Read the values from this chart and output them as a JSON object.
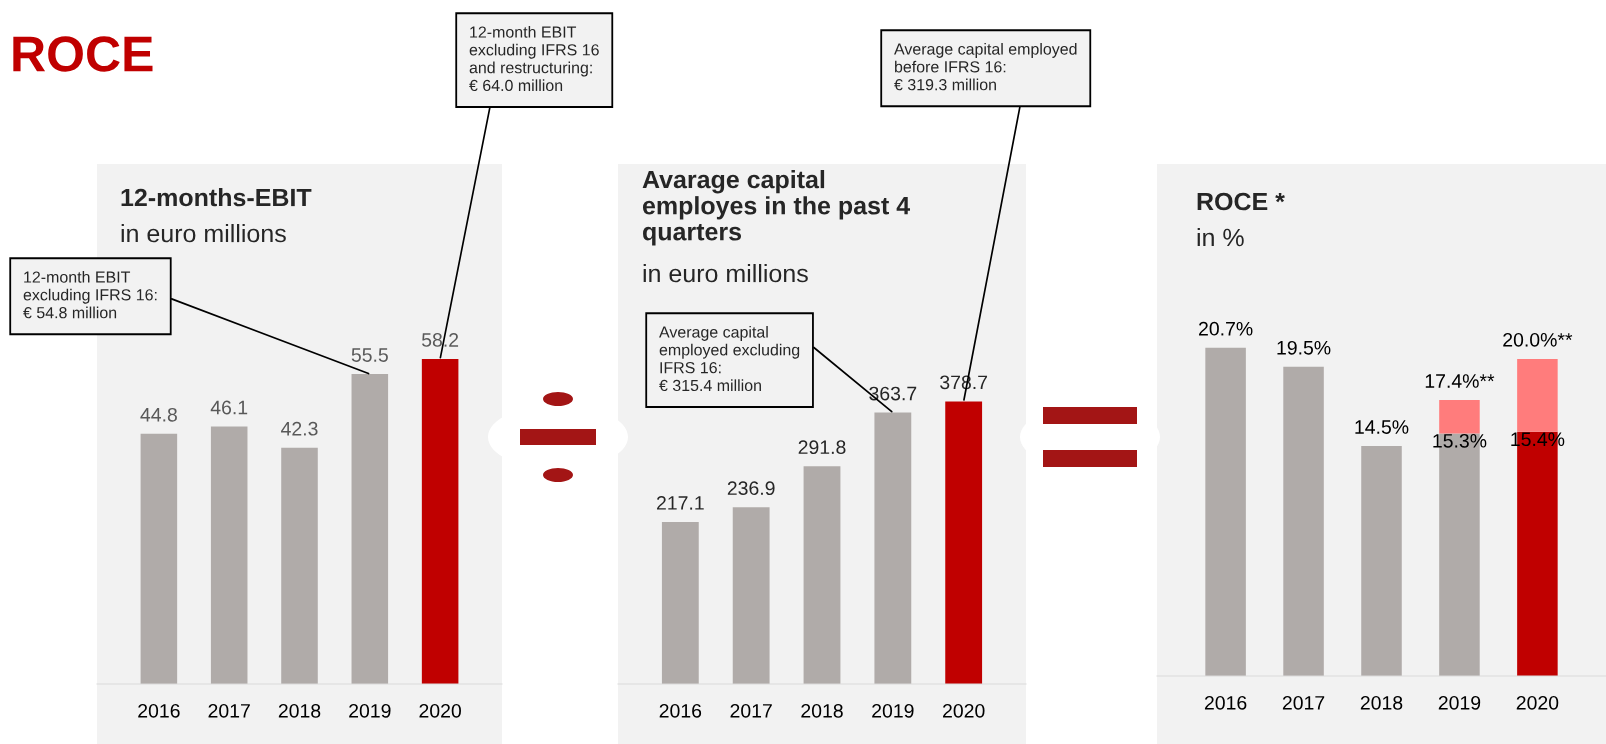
{
  "chart_data": [
    {
      "type": "other",
      "title": "ROCE"
    },
    {
      "type": "bar",
      "title": "12-months-EBIT",
      "subtitle": "in euro millions",
      "categories": [
        "2016",
        "2017",
        "2018",
        "2019",
        "2020"
      ],
      "values": [
        44.8,
        46.1,
        42.3,
        55.5,
        58.2
      ],
      "colors": [
        "#b0aba9",
        "#b0aba9",
        "#b0aba9",
        "#b0aba9",
        "#c00000"
      ],
      "data_labels": true,
      "tick_labels": "x",
      "annotations": [
        {
          "text": "12-month EBIT\nexcluding IFRS 16:\n€ 54.8 million",
          "x": "2019",
          "y": 55.5
        },
        {
          "text": "12-month EBIT\nexcluding IFRS 16\nand restructuring:\n€ 64.0 million",
          "x": "2020",
          "y": 58.2
        }
      ]
    },
    {
      "type": "bar",
      "title": "Avarage capital\nemployes in the past 4\nquarters",
      "subtitle": "in euro millions",
      "categories": [
        "2016",
        "2017",
        "2018",
        "2019",
        "2020"
      ],
      "values": [
        217.1,
        236.9,
        291.8,
        363.7,
        378.7
      ],
      "colors": [
        "#b0aba9",
        "#b0aba9",
        "#b0aba9",
        "#b0aba9",
        "#c00000"
      ],
      "data_labels": true,
      "tick_labels": "x",
      "annotations": [
        {
          "text": "Average capital\nemployed excluding\nIFRS 16:\n€ 315.4 million",
          "x": "2019",
          "y": 363.7
        },
        {
          "text": "Average capital employed\nbefore IFRS 16:\n€ 319.3 million",
          "x": "2020",
          "y": 378.7
        }
      ]
    },
    {
      "type": "bar",
      "title": "ROCE *",
      "subtitle": "in %",
      "categories": [
        "2016",
        "2017",
        "2018",
        "2019",
        "2020"
      ],
      "stacked": true,
      "tick_labels": "x",
      "series": [
        {
          "colors": [
            "#b0aba9",
            "#b0aba9",
            "#b0aba9",
            "#b0aba9",
            "#c00000"
          ],
          "values": [
            20.7,
            19.5,
            14.5,
            15.3,
            15.4
          ],
          "value_labels": [
            "20.7%",
            "19.5%",
            "14.5%",
            "15.3%",
            "15.4%"
          ]
        },
        {
          "color": "#ff7c7c",
          "values": [
            null,
            null,
            null,
            2.1,
            4.6
          ]
        }
      ],
      "totals": [
        null,
        null,
        null,
        "17.4%**",
        "20.0%**"
      ]
    }
  ]
}
